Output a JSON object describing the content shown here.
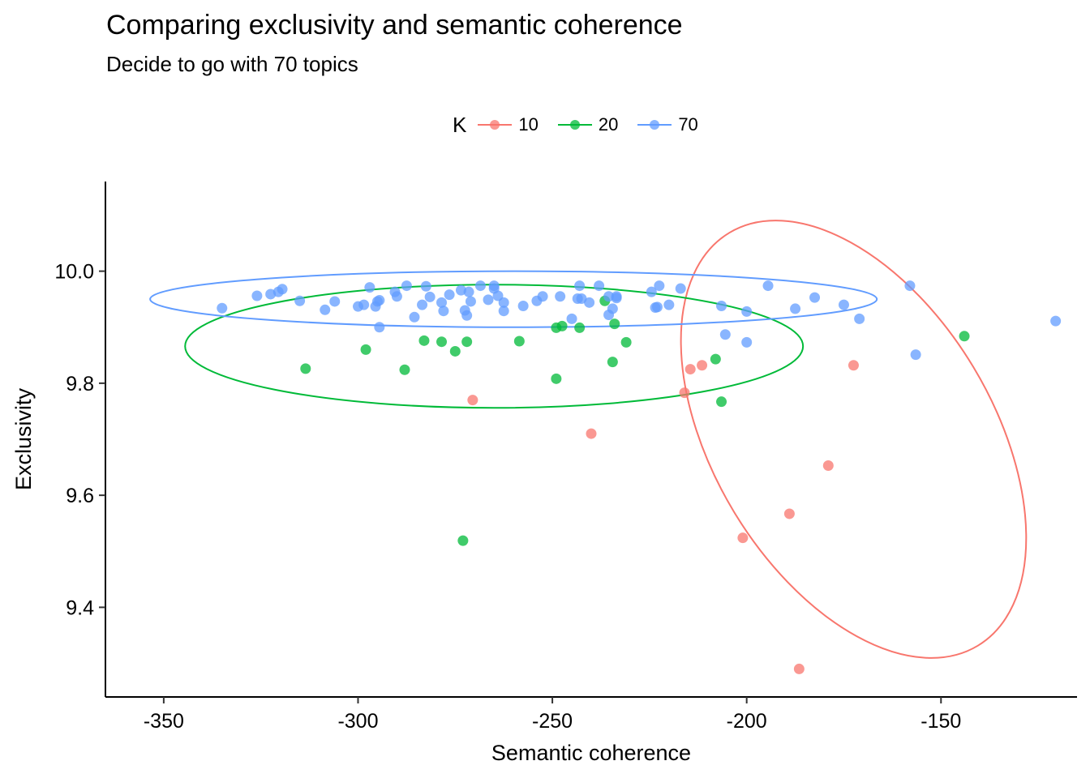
{
  "title": "Comparing exclusivity and semantic coherence",
  "subtitle": "Decide to go with 70 topics",
  "legend": {
    "title": "K",
    "items": [
      {
        "label": "10",
        "color": "#F8766D"
      },
      {
        "label": "20",
        "color": "#00BA38"
      },
      {
        "label": "70",
        "color": "#619CFF"
      }
    ]
  },
  "chart_data": {
    "type": "scatter",
    "title": "Comparing exclusivity and semantic coherence",
    "subtitle": "Decide to go with 70 topics",
    "xlabel": "Semantic coherence",
    "ylabel": "Exclusivity",
    "xlim": [
      -365,
      -115
    ],
    "ylim": [
      9.24,
      10.16
    ],
    "xticks": [
      -350,
      -300,
      -250,
      -200,
      -150
    ],
    "xtick_labels": [
      "-350",
      "-300",
      "-250",
      "-200",
      "-150"
    ],
    "yticks": [
      9.4,
      9.6,
      9.8,
      10.0
    ],
    "ytick_labels": [
      "9.4",
      "9.6",
      "9.8",
      "10.0"
    ],
    "legend_position": "top",
    "grid": false,
    "series": [
      {
        "name": "10",
        "color": "#F8766D",
        "points": [
          [
            -270.5,
            9.77
          ],
          [
            -240,
            9.71
          ],
          [
            -216,
            9.783
          ],
          [
            -214.5,
            9.825
          ],
          [
            -211.5,
            9.832
          ],
          [
            -172.5,
            9.832
          ],
          [
            -179,
            9.653
          ],
          [
            -189,
            9.567
          ],
          [
            -201,
            9.524
          ],
          [
            -186.5,
            9.29
          ]
        ],
        "ellipse": {
          "center": [
            -172.5,
            9.7
          ],
          "half_width": 36,
          "half_height": 0.43,
          "angle_deg": 31
        }
      },
      {
        "name": "20",
        "color": "#00BA38",
        "points": [
          [
            -313.5,
            9.826
          ],
          [
            -298,
            9.86
          ],
          [
            -288,
            9.824
          ],
          [
            -283,
            9.876
          ],
          [
            -278.5,
            9.874
          ],
          [
            -275,
            9.857
          ],
          [
            -272,
            9.874
          ],
          [
            -258.5,
            9.875
          ],
          [
            -249,
            9.899
          ],
          [
            -247.5,
            9.902
          ],
          [
            -243,
            9.899
          ],
          [
            -249,
            9.808
          ],
          [
            -236.5,
            9.947
          ],
          [
            -234,
            9.906
          ],
          [
            -234.5,
            9.838
          ],
          [
            -231,
            9.873
          ],
          [
            -208,
            9.843
          ],
          [
            -206.5,
            9.767
          ],
          [
            -144,
            9.884
          ],
          [
            -273,
            9.519
          ]
        ],
        "ellipse": {
          "center": [
            -265,
            9.866
          ],
          "half_width": 79.5,
          "half_height": 0.11,
          "angle_deg": 0
        }
      },
      {
        "name": "70",
        "color": "#619CFF",
        "points": [
          [
            -335,
            9.934
          ],
          [
            -326,
            9.956
          ],
          [
            -322.5,
            9.959
          ],
          [
            -320.5,
            9.963
          ],
          [
            -319.5,
            9.968
          ],
          [
            -315,
            9.947
          ],
          [
            -308.5,
            9.931
          ],
          [
            -306,
            9.946
          ],
          [
            -300,
            9.937
          ],
          [
            -298.5,
            9.94
          ],
          [
            -297,
            9.971
          ],
          [
            -295.5,
            9.937
          ],
          [
            -295,
            9.946
          ],
          [
            -294.5,
            9.948
          ],
          [
            -294.5,
            9.9
          ],
          [
            -290.5,
            9.963
          ],
          [
            -290,
            9.955
          ],
          [
            -287.5,
            9.974
          ],
          [
            -285.5,
            9.918
          ],
          [
            -283.5,
            9.94
          ],
          [
            -282.5,
            9.973
          ],
          [
            -281.5,
            9.954
          ],
          [
            -278.5,
            9.944
          ],
          [
            -278,
            9.929
          ],
          [
            -276.5,
            9.958
          ],
          [
            -273.5,
            9.966
          ],
          [
            -272.5,
            9.93
          ],
          [
            -272,
            9.921
          ],
          [
            -271.5,
            9.963
          ],
          [
            -271,
            9.946
          ],
          [
            -268.5,
            9.974
          ],
          [
            -266.5,
            9.949
          ],
          [
            -265,
            9.969
          ],
          [
            -265,
            9.974
          ],
          [
            -264,
            9.956
          ],
          [
            -262.5,
            9.944
          ],
          [
            -262.5,
            9.929
          ],
          [
            -257.5,
            9.938
          ],
          [
            -254,
            9.947
          ],
          [
            -252.5,
            9.955
          ],
          [
            -248,
            9.955
          ],
          [
            -245,
            9.915
          ],
          [
            -243.5,
            9.951
          ],
          [
            -243,
            9.974
          ],
          [
            -242.5,
            9.951
          ],
          [
            -240.5,
            9.944
          ],
          [
            -238,
            9.974
          ],
          [
            -235.5,
            9.955
          ],
          [
            -235.5,
            9.922
          ],
          [
            -234.5,
            9.933
          ],
          [
            -233.5,
            9.955
          ],
          [
            -233.5,
            9.952
          ],
          [
            -224.5,
            9.963
          ],
          [
            -223.5,
            9.935
          ],
          [
            -223,
            9.936
          ],
          [
            -222.5,
            9.974
          ],
          [
            -220,
            9.94
          ],
          [
            -217,
            9.969
          ],
          [
            -206.5,
            9.938
          ],
          [
            -205.5,
            9.887
          ],
          [
            -200,
            9.928
          ],
          [
            -200,
            9.873
          ],
          [
            -194.5,
            9.974
          ],
          [
            -187.5,
            9.933
          ],
          [
            -182.5,
            9.953
          ],
          [
            -175,
            9.94
          ],
          [
            -171,
            9.915
          ],
          [
            -158,
            9.974
          ],
          [
            -156.5,
            9.851
          ],
          [
            -120.5,
            9.911
          ]
        ],
        "ellipse": {
          "center": [
            -260,
            9.95
          ],
          "half_width": 93.5,
          "half_height": 0.05,
          "angle_deg": 0
        }
      }
    ]
  }
}
